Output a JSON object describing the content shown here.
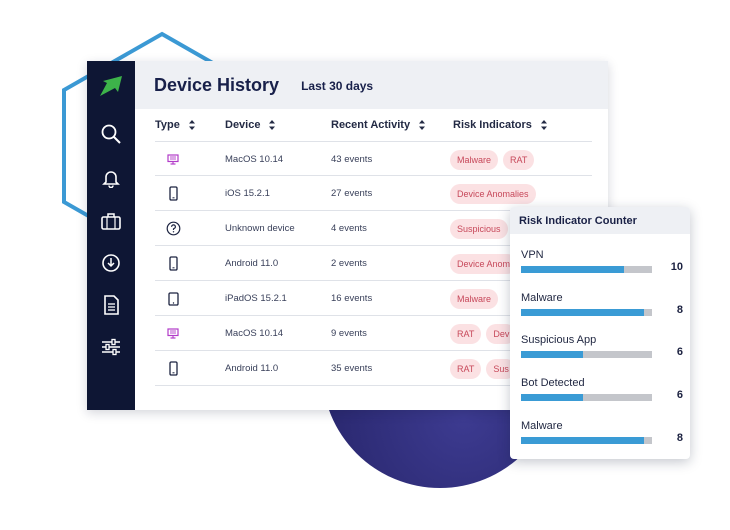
{
  "header": {
    "title": "Device History",
    "range": "Last 30 days"
  },
  "sidebar": {
    "icons": [
      "logo-arrow-icon",
      "search-icon",
      "bell-icon",
      "briefcase-icon",
      "download-icon",
      "document-icon",
      "sliders-icon"
    ]
  },
  "table": {
    "columns": [
      "Type",
      "Device",
      "Recent Activity",
      "Risk Indicators"
    ],
    "rows": [
      {
        "type": "desktop",
        "device": "MacOS 10.14",
        "activity": "43 events",
        "risks": [
          "Malware",
          "RAT"
        ]
      },
      {
        "type": "phone",
        "device": "iOS 15.2.1",
        "activity": "27 events",
        "risks": [
          "Device Anomalies"
        ]
      },
      {
        "type": "unknown",
        "device": "Unknown device",
        "activity": "4 events",
        "risks": [
          "Suspicious"
        ]
      },
      {
        "type": "phone",
        "device": "Android 11.0",
        "activity": "2 events",
        "risks": [
          "Device Anom"
        ]
      },
      {
        "type": "tablet",
        "device": "iPadOS 15.2.1",
        "activity": "16 events",
        "risks": [
          "Malware"
        ]
      },
      {
        "type": "desktop",
        "device": "MacOS 10.14",
        "activity": "9 events",
        "risks": [
          "RAT",
          "Dev"
        ]
      },
      {
        "type": "phone",
        "device": "Android 11.0",
        "activity": "35 events",
        "risks": [
          "RAT",
          "Sus"
        ]
      }
    ]
  },
  "risk_card": {
    "title": "Risk Indicator Counter",
    "max": 13,
    "items": [
      {
        "label": "VPN",
        "count": 10,
        "fill": 0.79
      },
      {
        "label": "Malware",
        "count": 8,
        "fill": 0.94
      },
      {
        "label": "Suspicious App",
        "count": 6,
        "fill": 0.47
      },
      {
        "label": "Bot Detected",
        "count": 6,
        "fill": 0.47
      },
      {
        "label": "Malware",
        "count": 8,
        "fill": 0.94
      }
    ]
  },
  "colors": {
    "sidebar": "#0e1634",
    "accent": "#3a9bd5",
    "tag_bg": "#fbe1e3",
    "tag_text": "#c7485a",
    "desktop_icon": "#b23bc9",
    "logo": "#3db34a",
    "hexagon": "#3b99d4",
    "circle": "#2c2a78"
  }
}
